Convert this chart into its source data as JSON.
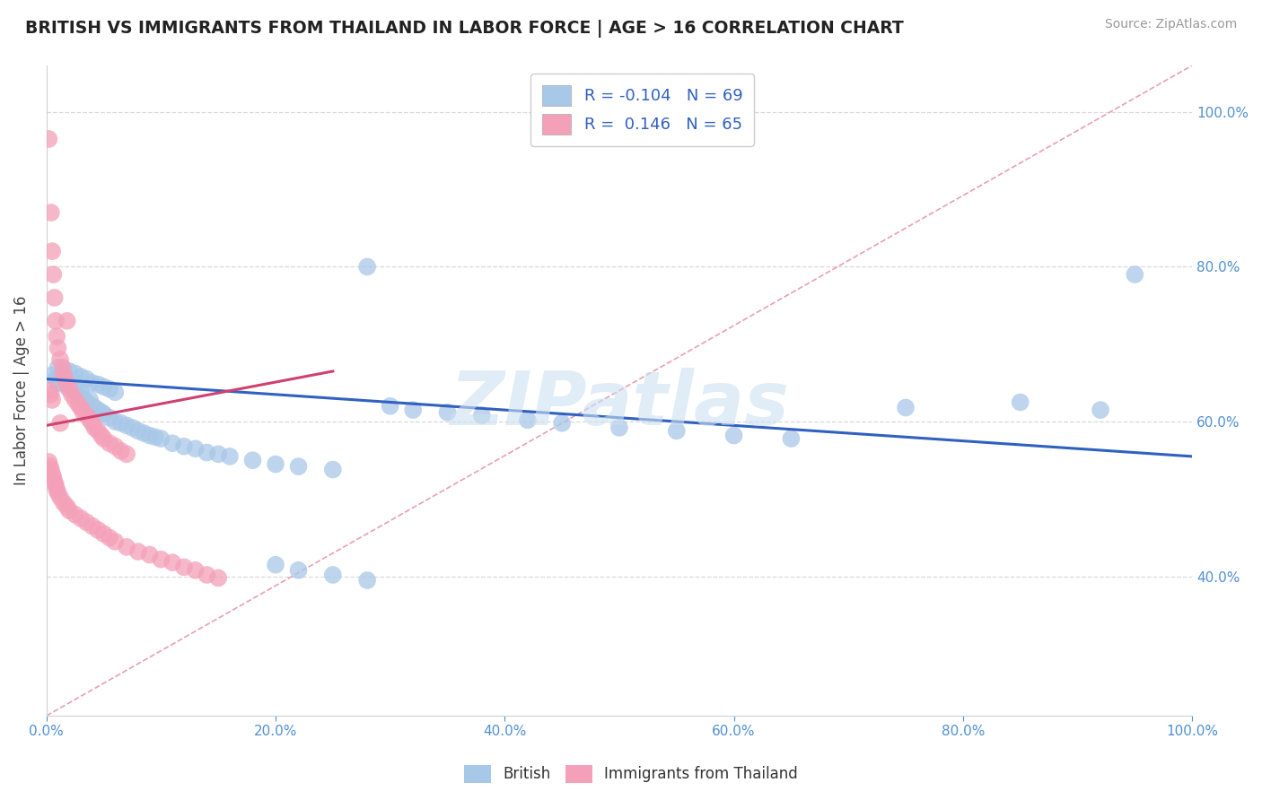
{
  "title": "BRITISH VS IMMIGRANTS FROM THAILAND IN LABOR FORCE | AGE > 16 CORRELATION CHART",
  "source": "Source: ZipAtlas.com",
  "ylabel": "In Labor Force | Age > 16",
  "xlim": [
    0.0,
    1.0
  ],
  "ylim": [
    0.22,
    1.06
  ],
  "british_R": -0.104,
  "british_N": 69,
  "thai_R": 0.146,
  "thai_N": 65,
  "british_color": "#a8c8e8",
  "thai_color": "#f4a0b8",
  "british_line_color": "#3060c0",
  "thai_line_color": "#d04070",
  "diag_line_color": "#e8a0b0",
  "legend_text_color": "#3060c0",
  "tick_color": "#5090d0",
  "british_x": [
    0.005,
    0.008,
    0.01,
    0.012,
    0.015,
    0.018,
    0.02,
    0.022,
    0.025,
    0.028,
    0.03,
    0.032,
    0.035,
    0.038,
    0.04,
    0.042,
    0.045,
    0.048,
    0.05,
    0.055,
    0.06,
    0.065,
    0.07,
    0.075,
    0.08,
    0.085,
    0.09,
    0.095,
    0.1,
    0.11,
    0.12,
    0.13,
    0.14,
    0.15,
    0.16,
    0.18,
    0.2,
    0.22,
    0.25,
    0.01,
    0.015,
    0.02,
    0.025,
    0.03,
    0.035,
    0.04,
    0.045,
    0.05,
    0.055,
    0.06,
    0.3,
    0.32,
    0.35,
    0.38,
    0.42,
    0.45,
    0.5,
    0.55,
    0.6,
    0.65,
    0.2,
    0.22,
    0.25,
    0.28,
    0.75,
    0.85,
    0.92,
    0.95,
    0.28
  ],
  "british_y": [
    0.66,
    0.655,
    0.65,
    0.658,
    0.662,
    0.645,
    0.648,
    0.652,
    0.64,
    0.635,
    0.638,
    0.63,
    0.625,
    0.628,
    0.62,
    0.618,
    0.615,
    0.612,
    0.61,
    0.605,
    0.6,
    0.598,
    0.595,
    0.592,
    0.588,
    0.585,
    0.582,
    0.58,
    0.578,
    0.572,
    0.568,
    0.565,
    0.56,
    0.558,
    0.555,
    0.55,
    0.545,
    0.542,
    0.538,
    0.67,
    0.668,
    0.665,
    0.662,
    0.658,
    0.655,
    0.65,
    0.648,
    0.645,
    0.642,
    0.638,
    0.62,
    0.615,
    0.612,
    0.608,
    0.602,
    0.598,
    0.592,
    0.588,
    0.582,
    0.578,
    0.415,
    0.408,
    0.402,
    0.395,
    0.618,
    0.625,
    0.615,
    0.79,
    0.8
  ],
  "thai_x": [
    0.002,
    0.004,
    0.005,
    0.006,
    0.007,
    0.008,
    0.009,
    0.01,
    0.012,
    0.014,
    0.015,
    0.016,
    0.018,
    0.02,
    0.022,
    0.025,
    0.028,
    0.03,
    0.032,
    0.035,
    0.038,
    0.04,
    0.042,
    0.045,
    0.048,
    0.05,
    0.055,
    0.06,
    0.065,
    0.07,
    0.002,
    0.003,
    0.004,
    0.005,
    0.006,
    0.007,
    0.008,
    0.009,
    0.01,
    0.012,
    0.015,
    0.018,
    0.02,
    0.025,
    0.03,
    0.035,
    0.04,
    0.045,
    0.05,
    0.055,
    0.06,
    0.07,
    0.08,
    0.09,
    0.1,
    0.11,
    0.12,
    0.13,
    0.14,
    0.15,
    0.003,
    0.004,
    0.005,
    0.012,
    0.018
  ],
  "thai_y": [
    0.965,
    0.87,
    0.82,
    0.79,
    0.76,
    0.73,
    0.71,
    0.695,
    0.68,
    0.67,
    0.66,
    0.655,
    0.648,
    0.642,
    0.635,
    0.628,
    0.622,
    0.618,
    0.612,
    0.608,
    0.602,
    0.598,
    0.592,
    0.588,
    0.582,
    0.578,
    0.572,
    0.568,
    0.562,
    0.558,
    0.548,
    0.542,
    0.538,
    0.532,
    0.528,
    0.522,
    0.518,
    0.512,
    0.508,
    0.502,
    0.495,
    0.49,
    0.485,
    0.48,
    0.475,
    0.47,
    0.465,
    0.46,
    0.455,
    0.45,
    0.445,
    0.438,
    0.432,
    0.428,
    0.422,
    0.418,
    0.412,
    0.408,
    0.402,
    0.398,
    0.64,
    0.635,
    0.628,
    0.598,
    0.73
  ]
}
